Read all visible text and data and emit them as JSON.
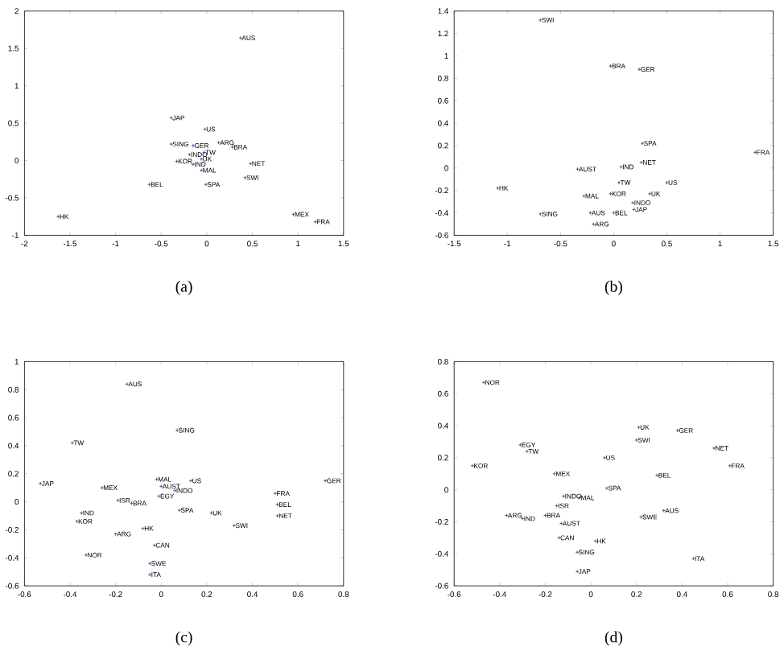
{
  "chart_data": [
    {
      "type": "scatter",
      "title": "(a)",
      "marker": "cross",
      "color": "#3030a0",
      "xlim": [
        -2,
        1.5
      ],
      "ylim": [
        -1,
        2
      ],
      "xticks": [
        -2,
        -1.5,
        -1,
        -0.5,
        0,
        0.5,
        1,
        1.5
      ],
      "yticks": [
        -1,
        -0.5,
        0,
        0.5,
        1,
        1.5,
        2
      ],
      "x": [
        0.37,
        -0.39,
        -0.02,
        -0.39,
        -0.15,
        0.13,
        0.28,
        -0.03,
        -0.19,
        -0.06,
        -0.33,
        -0.15,
        0.48,
        -0.06,
        -0.63,
        -0.01,
        0.42,
        -1.63,
        0.95,
        1.19
      ],
      "values": [
        1.64,
        0.57,
        0.42,
        0.22,
        0.2,
        0.24,
        0.18,
        0.11,
        0.08,
        0.02,
        -0.01,
        -0.05,
        -0.04,
        -0.13,
        -0.32,
        -0.32,
        -0.23,
        -0.75,
        -0.72,
        -0.82
      ],
      "annotations": [
        {
          "text": "AUS",
          "x": 0.37,
          "y": 1.64
        },
        {
          "text": "JAP",
          "x": -0.39,
          "y": 0.57
        },
        {
          "text": "US",
          "x": -0.02,
          "y": 0.42
        },
        {
          "text": "SING",
          "x": -0.39,
          "y": 0.22
        },
        {
          "text": "GER",
          "x": -0.15,
          "y": 0.2
        },
        {
          "text": "ARG",
          "x": 0.13,
          "y": 0.24
        },
        {
          "text": "BRA",
          "x": 0.28,
          "y": 0.18
        },
        {
          "text": "TW",
          "x": -0.03,
          "y": 0.11
        },
        {
          "text": "INDO",
          "x": -0.19,
          "y": 0.08
        },
        {
          "text": "UK",
          "x": -0.06,
          "y": 0.02
        },
        {
          "text": "KOR",
          "x": -0.33,
          "y": -0.01
        },
        {
          "text": "IND",
          "x": -0.15,
          "y": -0.05
        },
        {
          "text": "NET",
          "x": 0.48,
          "y": -0.04
        },
        {
          "text": "MAL",
          "x": -0.06,
          "y": -0.13
        },
        {
          "text": "BEL",
          "x": -0.63,
          "y": -0.32
        },
        {
          "text": "SPA",
          "x": -0.01,
          "y": -0.32
        },
        {
          "text": "SWI",
          "x": 0.42,
          "y": -0.23
        },
        {
          "text": "HK",
          "x": -1.63,
          "y": -0.75
        },
        {
          "text": "MEX",
          "x": 0.95,
          "y": -0.72
        },
        {
          "text": "FRA",
          "x": 1.19,
          "y": -0.82
        }
      ]
    },
    {
      "type": "scatter",
      "title": "(b)",
      "marker": "cross",
      "color": "#3030a0",
      "xlim": [
        -1.5,
        1.5
      ],
      "ylim": [
        -0.6,
        1.4
      ],
      "xticks": [
        -1.5,
        -1,
        -0.5,
        0,
        0.5,
        1,
        1.5
      ],
      "yticks": [
        -0.6,
        -0.4,
        -0.2,
        0,
        0.2,
        0.4,
        0.6,
        0.8,
        1,
        1.2,
        1.4
      ],
      "x": [
        -0.69,
        -0.03,
        0.24,
        0.27,
        0.26,
        1.33,
        0.07,
        -0.34,
        -1.09,
        0.05,
        0.5,
        -0.03,
        0.34,
        -0.28,
        0.18,
        0.19,
        -0.69,
        -0.22,
        0,
        -0.19
      ],
      "values": [
        1.32,
        0.91,
        0.88,
        0.22,
        0.05,
        0.14,
        0.01,
        -0.01,
        -0.18,
        -0.13,
        -0.13,
        -0.23,
        -0.23,
        -0.25,
        -0.31,
        -0.37,
        -0.41,
        -0.4,
        -0.4,
        -0.5
      ],
      "annotations": [
        {
          "text": "SWI",
          "x": -0.69,
          "y": 1.32
        },
        {
          "text": "BRA",
          "x": -0.03,
          "y": 0.91
        },
        {
          "text": "GER",
          "x": 0.24,
          "y": 0.88
        },
        {
          "text": "SPA",
          "x": 0.27,
          "y": 0.22
        },
        {
          "text": "NET",
          "x": 0.26,
          "y": 0.05
        },
        {
          "text": "FRA",
          "x": 1.33,
          "y": 0.14
        },
        {
          "text": "IND",
          "x": 0.07,
          "y": 0.01
        },
        {
          "text": "AUST",
          "x": -0.34,
          "y": -0.01
        },
        {
          "text": "HK",
          "x": -1.09,
          "y": -0.18
        },
        {
          "text": "TW",
          "x": 0.05,
          "y": -0.13
        },
        {
          "text": "US",
          "x": 0.5,
          "y": -0.13
        },
        {
          "text": "KOR",
          "x": -0.03,
          "y": -0.23
        },
        {
          "text": "UK",
          "x": 0.34,
          "y": -0.23
        },
        {
          "text": "MAL",
          "x": -0.28,
          "y": -0.25
        },
        {
          "text": "INDO",
          "x": 0.18,
          "y": -0.31
        },
        {
          "text": "JAP",
          "x": 0.19,
          "y": -0.37
        },
        {
          "text": "SING",
          "x": -0.69,
          "y": -0.41
        },
        {
          "text": "AUS",
          "x": -0.22,
          "y": -0.4
        },
        {
          "text": "BEL",
          "x": 0,
          "y": -0.4
        },
        {
          "text": "ARG",
          "x": -0.19,
          "y": -0.5
        }
      ]
    },
    {
      "type": "scatter",
      "title": "(c)",
      "marker": "cross",
      "color": "#3030a0",
      "xlim": [
        -0.6,
        0.8
      ],
      "ylim": [
        -0.6,
        1
      ],
      "xticks": [
        -0.6,
        -0.4,
        -0.2,
        0,
        0.2,
        0.4,
        0.6,
        0.8
      ],
      "yticks": [
        -0.6,
        -0.4,
        -0.2,
        0,
        0.2,
        0.4,
        0.6,
        0.8,
        1
      ],
      "x": [
        -0.15,
        0.07,
        -0.39,
        -0.53,
        -0.02,
        0.13,
        -0.26,
        0,
        0.06,
        -0.01,
        0.5,
        0.72,
        -0.19,
        -0.13,
        0.51,
        0.08,
        -0.35,
        0.22,
        0.51,
        -0.37,
        0.32,
        -0.08,
        -0.2,
        -0.03,
        -0.33,
        -0.05,
        -0.05
      ],
      "values": [
        0.84,
        0.51,
        0.42,
        0.13,
        0.16,
        0.15,
        0.1,
        0.11,
        0.08,
        0.04,
        0.06,
        0.15,
        0.01,
        -0.01,
        -0.02,
        -0.06,
        -0.08,
        -0.08,
        -0.1,
        -0.14,
        -0.17,
        -0.19,
        -0.23,
        -0.31,
        -0.38,
        -0.44,
        -0.52
      ],
      "annotations": [
        {
          "text": "AUS",
          "x": -0.15,
          "y": 0.84
        },
        {
          "text": "SING",
          "x": 0.07,
          "y": 0.51
        },
        {
          "text": "TW",
          "x": -0.39,
          "y": 0.42
        },
        {
          "text": "JAP",
          "x": -0.53,
          "y": 0.13
        },
        {
          "text": "MAL",
          "x": -0.02,
          "y": 0.16
        },
        {
          "text": "US",
          "x": 0.13,
          "y": 0.15
        },
        {
          "text": "MEX",
          "x": -0.26,
          "y": 0.1
        },
        {
          "text": "AUST",
          "x": 0,
          "y": 0.11
        },
        {
          "text": "INDO",
          "x": 0.06,
          "y": 0.08
        },
        {
          "text": "EGY",
          "x": -0.01,
          "y": 0.04
        },
        {
          "text": "FRA",
          "x": 0.5,
          "y": 0.06
        },
        {
          "text": "GER",
          "x": 0.72,
          "y": 0.15
        },
        {
          "text": "ISR",
          "x": -0.19,
          "y": 0.01
        },
        {
          "text": "BRA",
          "x": -0.13,
          "y": -0.01
        },
        {
          "text": "BEL",
          "x": 0.51,
          "y": -0.02
        },
        {
          "text": "SPA",
          "x": 0.08,
          "y": -0.06
        },
        {
          "text": "IND",
          "x": -0.35,
          "y": -0.08
        },
        {
          "text": "UK",
          "x": 0.22,
          "y": -0.08
        },
        {
          "text": "NET",
          "x": 0.51,
          "y": -0.1
        },
        {
          "text": "KOR",
          "x": -0.37,
          "y": -0.14
        },
        {
          "text": "SWI",
          "x": 0.32,
          "y": -0.17
        },
        {
          "text": "HK",
          "x": -0.08,
          "y": -0.19
        },
        {
          "text": "ARG",
          "x": -0.2,
          "y": -0.23
        },
        {
          "text": "CAN",
          "x": -0.03,
          "y": -0.31
        },
        {
          "text": "NOR",
          "x": -0.33,
          "y": -0.38
        },
        {
          "text": "SWE",
          "x": -0.05,
          "y": -0.44
        },
        {
          "text": "ITA",
          "x": -0.05,
          "y": -0.52
        }
      ]
    },
    {
      "type": "scatter",
      "title": "(d)",
      "marker": "cross",
      "color": "#3030a0",
      "xlim": [
        -0.6,
        0.8
      ],
      "ylim": [
        -0.6,
        0.8
      ],
      "xticks": [
        -0.6,
        -0.4,
        -0.2,
        0,
        0.2,
        0.4,
        0.6,
        0.8
      ],
      "yticks": [
        -0.6,
        -0.4,
        -0.2,
        0,
        0.2,
        0.4,
        0.6,
        0.8
      ],
      "x": [
        -0.47,
        0.21,
        0.38,
        0.2,
        -0.31,
        -0.28,
        0.54,
        0.06,
        -0.52,
        0.61,
        -0.16,
        0.29,
        0.07,
        -0.12,
        -0.05,
        -0.15,
        0.32,
        -0.37,
        -0.2,
        -0.3,
        0.22,
        -0.13,
        -0.14,
        0.02,
        -0.06,
        0.45,
        -0.06
      ],
      "values": [
        0.67,
        0.39,
        0.37,
        0.31,
        0.28,
        0.24,
        0.26,
        0.2,
        0.15,
        0.15,
        0.1,
        0.09,
        0.01,
        -0.04,
        -0.05,
        -0.1,
        -0.13,
        -0.16,
        -0.16,
        -0.18,
        -0.17,
        -0.21,
        -0.3,
        -0.32,
        -0.39,
        -0.43,
        -0.51
      ],
      "annotations": [
        {
          "text": "NOR",
          "x": -0.47,
          "y": 0.67
        },
        {
          "text": "UK",
          "x": 0.21,
          "y": 0.39
        },
        {
          "text": "GER",
          "x": 0.38,
          "y": 0.37
        },
        {
          "text": "SWI",
          "x": 0.2,
          "y": 0.31
        },
        {
          "text": "EGY",
          "x": -0.31,
          "y": 0.28
        },
        {
          "text": "TW",
          "x": -0.28,
          "y": 0.24
        },
        {
          "text": "NET",
          "x": 0.54,
          "y": 0.26
        },
        {
          "text": "US",
          "x": 0.06,
          "y": 0.2
        },
        {
          "text": "KOR",
          "x": -0.52,
          "y": 0.15
        },
        {
          "text": "FRA",
          "x": 0.61,
          "y": 0.15
        },
        {
          "text": "MEX",
          "x": -0.16,
          "y": 0.1
        },
        {
          "text": "BEL",
          "x": 0.29,
          "y": 0.09
        },
        {
          "text": "SPA",
          "x": 0.07,
          "y": 0.01
        },
        {
          "text": "INDO",
          "x": -0.12,
          "y": -0.04
        },
        {
          "text": "MAL",
          "x": -0.05,
          "y": -0.05
        },
        {
          "text": "ISR",
          "x": -0.15,
          "y": -0.1
        },
        {
          "text": "AUS",
          "x": 0.32,
          "y": -0.13
        },
        {
          "text": "ARG",
          "x": -0.37,
          "y": -0.16
        },
        {
          "text": "BRA",
          "x": -0.2,
          "y": -0.16
        },
        {
          "text": "IND",
          "x": -0.3,
          "y": -0.18
        },
        {
          "text": "SWE",
          "x": 0.22,
          "y": -0.17
        },
        {
          "text": "AUST",
          "x": -0.13,
          "y": -0.21
        },
        {
          "text": "CAN",
          "x": -0.14,
          "y": -0.3
        },
        {
          "text": "HK",
          "x": 0.02,
          "y": -0.32
        },
        {
          "text": "SING",
          "x": -0.06,
          "y": -0.39
        },
        {
          "text": "ITA",
          "x": 0.45,
          "y": -0.43
        },
        {
          "text": "JAP",
          "x": -0.06,
          "y": -0.51
        }
      ]
    }
  ]
}
